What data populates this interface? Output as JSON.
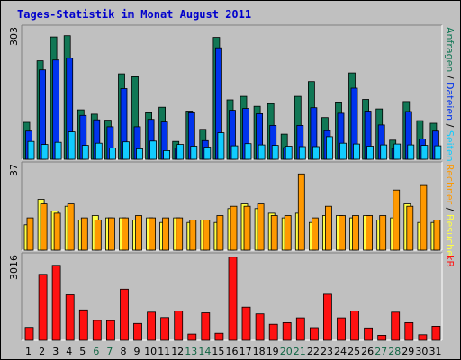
{
  "title": "Tages-Statistik im Monat August 2011",
  "colors": {
    "anfragen": "#117755",
    "dateien": "#0033ee",
    "seiten": "#11ccff",
    "besuche": "#ffff44",
    "rechner": "#ff9900",
    "kb": "#ff1111",
    "weekend_label": "#116644",
    "weekday_label": "#000000"
  },
  "chart_data": [
    {
      "type": "bar",
      "name": "top",
      "ymax_label": "303",
      "ylim": [
        0,
        303
      ],
      "right_labels": [
        "Anfragen",
        "/",
        "Dateien",
        "/",
        "Seiten"
      ],
      "right_label_colors": [
        "#117755",
        "#000000",
        "#0033ee",
        "#000000",
        "#11ccff"
      ],
      "series": [
        {
          "name": "Anfragen",
          "color": "#117755",
          "values": [
            85,
            227,
            282,
            285,
            114,
            104,
            90,
            197,
            190,
            107,
            120,
            41,
            111,
            69,
            281,
            137,
            145,
            122,
            128,
            58,
            145,
            179,
            96,
            132,
            199,
            138,
            116,
            44,
            133,
            89,
            83
          ]
        },
        {
          "name": "Dateien",
          "color": "#0033ee",
          "values": [
            65,
            206,
            229,
            233,
            101,
            91,
            75,
            163,
            75,
            92,
            86,
            26,
            107,
            43,
            257,
            113,
            117,
            105,
            78,
            27,
            78,
            119,
            66,
            106,
            164,
            111,
            79,
            25,
            110,
            47,
            65
          ]
        },
        {
          "name": "Seiten",
          "color": "#11ccff",
          "values": [
            41,
            34,
            39,
            63,
            32,
            37,
            26,
            40,
            24,
            42,
            20,
            34,
            30,
            28,
            61,
            31,
            36,
            33,
            32,
            30,
            29,
            29,
            52,
            37,
            35,
            30,
            33,
            35,
            33,
            32,
            31
          ]
        }
      ]
    },
    {
      "type": "bar",
      "name": "middle",
      "ymax_label": "37",
      "ylim": [
        0,
        37
      ],
      "right_labels": [
        "Rechner",
        "/",
        "Besuche"
      ],
      "right_label_colors": [
        "#ff9900",
        "#000000",
        "#ffff44"
      ],
      "series": [
        {
          "name": "Besuche",
          "color": "#ffff44",
          "values": [
            11,
            22,
            17,
            19,
            13,
            15,
            14,
            14,
            13,
            14,
            12,
            14,
            12,
            13,
            12,
            18,
            20,
            18,
            16,
            14,
            16,
            12,
            15,
            15,
            14,
            15,
            13,
            14,
            20,
            12,
            12
          ]
        },
        {
          "name": "Rechner",
          "color": "#ff9900",
          "values": [
            14,
            20,
            16,
            20,
            14,
            13,
            14,
            14,
            15,
            14,
            14,
            14,
            13,
            13,
            15,
            19,
            19,
            20,
            15,
            15,
            33,
            14,
            19,
            15,
            15,
            15,
            15,
            26,
            19,
            28,
            13
          ]
        }
      ]
    },
    {
      "type": "bar",
      "name": "bottom",
      "ymax_label": "3016",
      "ylim": [
        0,
        3016
      ],
      "right_labels": [
        "kB"
      ],
      "right_label_colors": [
        "#ff1111"
      ],
      "series": [
        {
          "name": "kB",
          "color": "#ff1111",
          "values": [
            460,
            2350,
            2670,
            1620,
            1080,
            710,
            700,
            1820,
            600,
            1000,
            810,
            1040,
            220,
            980,
            250,
            2960,
            1180,
            940,
            570,
            630,
            800,
            450,
            1640,
            800,
            1040,
            440,
            180,
            1000,
            630,
            200,
            500
          ]
        }
      ]
    }
  ],
  "x_labels": [
    "1",
    "2",
    "3",
    "4",
    "5",
    "6",
    "7",
    "8",
    "9",
    "10",
    "11",
    "12",
    "13",
    "14",
    "15",
    "16",
    "17",
    "18",
    "19",
    "20",
    "21",
    "22",
    "23",
    "24",
    "25",
    "26",
    "27",
    "28",
    "29",
    "30",
    "31"
  ],
  "weekend_days": [
    6,
    7,
    13,
    14,
    20,
    21,
    27,
    28
  ]
}
